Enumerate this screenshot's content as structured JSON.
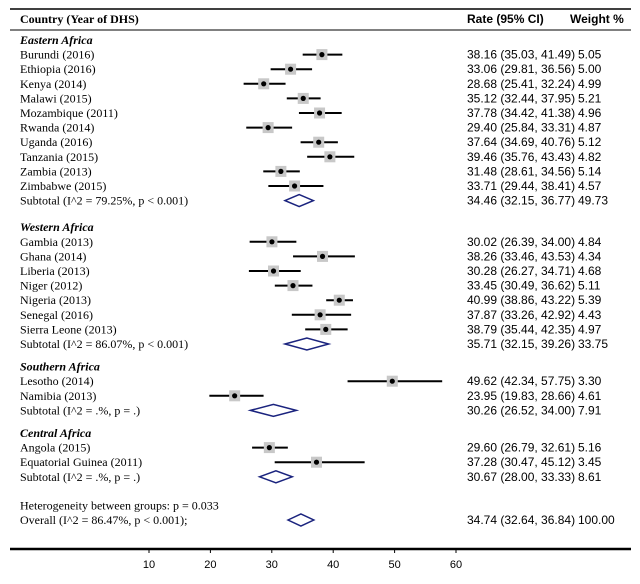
{
  "chart_data": {
    "type": "forest",
    "columns": {
      "label": "Country (Year of DHS)",
      "rate": "Rate (95% CI)",
      "weight": "Weight %"
    },
    "xticks": [
      10,
      20,
      30,
      40,
      50,
      60
    ],
    "groups": [
      {
        "name": "Eastern Africa",
        "studies": [
          {
            "label": "Burundi (2016)",
            "est": 38.16,
            "lo": 35.03,
            "hi": 41.49,
            "ci": "38.16 (35.03, 41.49)",
            "weight": "5.05"
          },
          {
            "label": "Ethiopia (2016)",
            "est": 33.06,
            "lo": 29.81,
            "hi": 36.56,
            "ci": "33.06 (29.81, 36.56)",
            "weight": "5.00"
          },
          {
            "label": "Kenya (2014)",
            "est": 28.68,
            "lo": 25.41,
            "hi": 32.24,
            "ci": "28.68 (25.41, 32.24)",
            "weight": "4.99"
          },
          {
            "label": "Malawi (2015)",
            "est": 35.12,
            "lo": 32.44,
            "hi": 37.95,
            "ci": "35.12 (32.44, 37.95)",
            "weight": "5.21"
          },
          {
            "label": "Mozambique (2011)",
            "est": 37.78,
            "lo": 34.42,
            "hi": 41.38,
            "ci": "37.78 (34.42, 41.38)",
            "weight": "4.96"
          },
          {
            "label": "Rwanda (2014)",
            "est": 29.4,
            "lo": 25.84,
            "hi": 33.31,
            "ci": "29.40 (25.84, 33.31)",
            "weight": "4.87"
          },
          {
            "label": "Uganda (2016)",
            "est": 37.64,
            "lo": 34.69,
            "hi": 40.76,
            "ci": "37.64 (34.69, 40.76)",
            "weight": "5.12"
          },
          {
            "label": "Tanzania (2015)",
            "est": 39.46,
            "lo": 35.76,
            "hi": 43.43,
            "ci": "39.46 (35.76, 43.43)",
            "weight": "4.82"
          },
          {
            "label": "Zambia (2013)",
            "est": 31.48,
            "lo": 28.61,
            "hi": 34.56,
            "ci": "31.48 (28.61, 34.56)",
            "weight": "5.14"
          },
          {
            "label": "Zimbabwe (2015)",
            "est": 33.71,
            "lo": 29.44,
            "hi": 38.41,
            "ci": "33.71 (29.44, 38.41)",
            "weight": "4.57"
          }
        ],
        "subtotal": {
          "label": "Subtotal (I^2 = 79.25%, p < 0.001)",
          "est": 34.46,
          "lo": 32.15,
          "hi": 36.77,
          "ci": "34.46 (32.15, 36.77)",
          "weight": "49.73"
        }
      },
      {
        "name": "Western Africa",
        "studies": [
          {
            "label": "Gambia (2013)",
            "est": 30.02,
            "lo": 26.39,
            "hi": 34.0,
            "ci": "30.02 (26.39, 34.00)",
            "weight": "4.84"
          },
          {
            "label": "Ghana (2014)",
            "est": 38.26,
            "lo": 33.46,
            "hi": 43.53,
            "ci": "38.26 (33.46, 43.53)",
            "weight": "4.34"
          },
          {
            "label": "Liberia (2013)",
            "est": 30.28,
            "lo": 26.27,
            "hi": 34.71,
            "ci": "30.28 (26.27, 34.71)",
            "weight": "4.68"
          },
          {
            "label": "Niger (2012)",
            "est": 33.45,
            "lo": 30.49,
            "hi": 36.62,
            "ci": "33.45 (30.49, 36.62)",
            "weight": "5.11"
          },
          {
            "label": "Nigeria (2013)",
            "est": 40.99,
            "lo": 38.86,
            "hi": 43.22,
            "ci": "40.99 (38.86, 43.22)",
            "weight": "5.39"
          },
          {
            "label": "Senegal (2016)",
            "est": 37.87,
            "lo": 33.26,
            "hi": 42.92,
            "ci": "37.87 (33.26, 42.92)",
            "weight": "4.43"
          },
          {
            "label": "Sierra Leone (2013)",
            "est": 38.79,
            "lo": 35.44,
            "hi": 42.35,
            "ci": "38.79 (35.44, 42.35)",
            "weight": "4.97"
          }
        ],
        "subtotal": {
          "label": "Subtotal (I^2 = 86.07%, p < 0.001)",
          "est": 35.71,
          "lo": 32.15,
          "hi": 39.26,
          "ci": "35.71 (32.15, 39.26)",
          "weight": "33.75"
        }
      },
      {
        "name": "Southern Africa",
        "studies": [
          {
            "label": "Lesotho (2014)",
            "est": 49.62,
            "lo": 42.34,
            "hi": 57.75,
            "ci": "49.62 (42.34, 57.75)",
            "weight": "3.30"
          },
          {
            "label": "Namibia (2013)",
            "est": 23.95,
            "lo": 19.83,
            "hi": 28.66,
            "ci": "23.95 (19.83, 28.66)",
            "weight": "4.61"
          }
        ],
        "subtotal": {
          "label": "Subtotal (I^2 = .%, p = .)",
          "est": 30.26,
          "lo": 26.52,
          "hi": 34.0,
          "ci": "30.26 (26.52, 34.00)",
          "weight": "7.91"
        }
      },
      {
        "name": "Central Africa",
        "studies": [
          {
            "label": "Angola (2015)",
            "est": 29.6,
            "lo": 26.79,
            "hi": 32.61,
            "ci": "29.60 (26.79, 32.61)",
            "weight": "5.16"
          },
          {
            "label": "Equatorial Guinea (2011)",
            "est": 37.28,
            "lo": 30.47,
            "hi": 45.12,
            "ci": "37.28 (30.47, 45.12)",
            "weight": "3.45"
          }
        ],
        "subtotal": {
          "label": "Subtotal (I^2 = .%, p = .)",
          "est": 30.67,
          "lo": 28.0,
          "hi": 33.33,
          "ci": "30.67 (28.00, 33.33)",
          "weight": "8.61"
        }
      }
    ],
    "heterogeneity": "Heterogeneity between groups: p = 0.033",
    "overall": {
      "label": "Overall (I^2 = 86.47%, p < 0.001);",
      "est": 34.74,
      "lo": 32.64,
      "hi": 36.84,
      "ci": "34.74 (32.64, 36.84)",
      "weight": "100.00"
    },
    "colors": {
      "line": "#000000",
      "box": "#c8c8c8",
      "point": "#000000",
      "diamond": "#1a237e"
    }
  }
}
